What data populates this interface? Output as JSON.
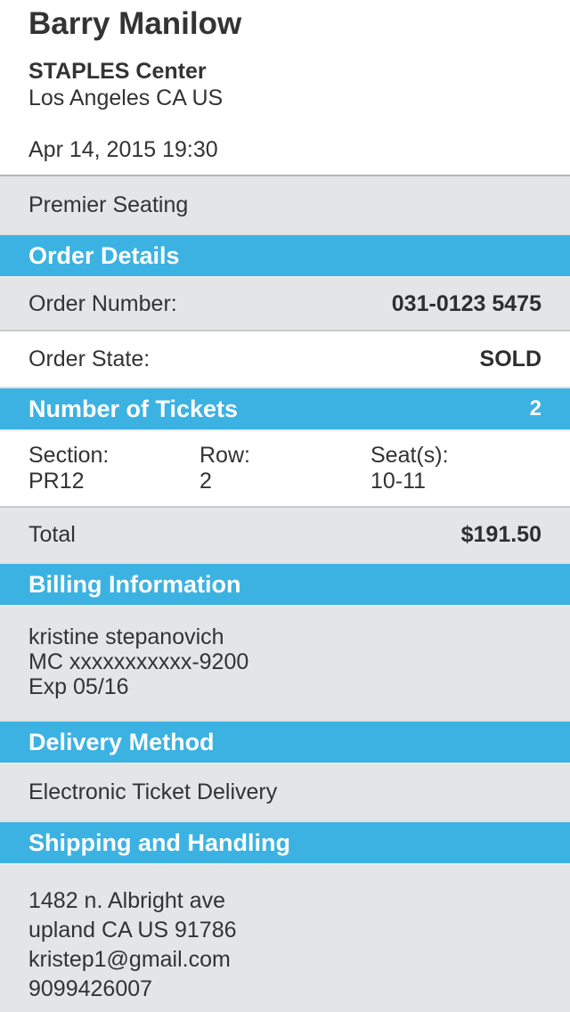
{
  "colors": {
    "accent_blue": "#3cb2e2",
    "row_gray": "#e4e5e7",
    "text_dark": "#333333"
  },
  "event": {
    "title": "Barry Manilow",
    "venue": "STAPLES Center",
    "location": "Los Angeles CA US",
    "datetime": "Apr 14, 2015 19:30",
    "seating_class": "Premier Seating"
  },
  "order_details": {
    "header": "Order Details",
    "order_number_label": "Order Number:",
    "order_number_value": "031-0123 5475",
    "order_state_label": "Order State:",
    "order_state_value": "SOLD"
  },
  "tickets": {
    "header": "Number of Tickets",
    "count": "2",
    "columns": [
      {
        "label": "Section:",
        "value": "PR12"
      },
      {
        "label": "Row:",
        "value": "2"
      },
      {
        "label": "Seat(s):",
        "value": "10-11"
      }
    ],
    "total_label": "Total",
    "total_value": "$191.50"
  },
  "billing": {
    "header": "Billing Information",
    "lines": [
      "kristine stepanovich",
      "MC xxxxxxxxxxx-9200",
      "Exp 05/16"
    ]
  },
  "delivery": {
    "header": "Delivery Method",
    "method": "Electronic Ticket Delivery"
  },
  "shipping": {
    "header": "Shipping and Handling",
    "lines": [
      "1482 n. Albright ave",
      "upland CA US 91786",
      "kristep1@gmail.com",
      "9099426007"
    ]
  }
}
